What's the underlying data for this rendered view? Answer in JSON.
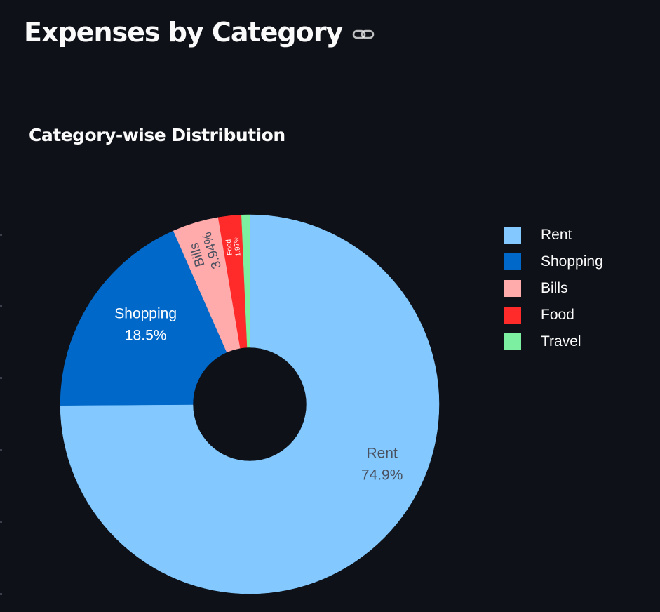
{
  "header": {
    "title": "Expenses by Category",
    "link_icon": "link-icon"
  },
  "colors": {
    "background": "#0e1117",
    "text": "#fafafa"
  },
  "chart_data": {
    "type": "pie",
    "title": "Category-wise Distribution",
    "hole": true,
    "categories": [
      "Rent",
      "Shopping",
      "Bills",
      "Food",
      "Travel"
    ],
    "values": [
      74.9,
      18.5,
      3.94,
      1.97,
      0.69
    ],
    "labels": [
      "74.9%",
      "18.5%",
      "3.94%",
      "1.97%",
      ""
    ],
    "colors": [
      "#83c9ff",
      "#0068c9",
      "#ffabab",
      "#ff2b2b",
      "#7defa1"
    ],
    "label_colors": [
      "#4a5160",
      "#ffffff",
      "#4a5160",
      "#ffffff",
      "#ffffff"
    ],
    "legend_position": "right",
    "sort": "descending",
    "direction": "clockwise"
  }
}
